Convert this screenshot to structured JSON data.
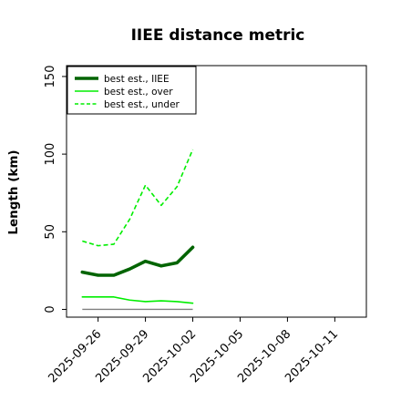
{
  "chart_data": {
    "type": "line",
    "title": "IIEE distance metric",
    "xlabel": "",
    "ylabel": "Length (km)",
    "x": [
      "2025-09-25",
      "2025-09-26",
      "2025-09-27",
      "2025-09-28",
      "2025-09-29",
      "2025-09-30",
      "2025-10-01",
      "2025-10-02"
    ],
    "xlim": [
      "2025-09-24",
      "2025-10-13"
    ],
    "x_ticks": [
      "2025-09-26",
      "2025-09-29",
      "2025-10-02",
      "2025-10-05",
      "2025-10-08",
      "2025-10-11"
    ],
    "ylim": [
      -5,
      157
    ],
    "y_ticks": [
      0,
      50,
      100,
      150
    ],
    "grid": false,
    "legend_position": "top-left",
    "series": [
      {
        "name": "best est., IIEE",
        "color": "#006400",
        "style": "solid-thick",
        "values": [
          24,
          22,
          22,
          26,
          31,
          28,
          30,
          40
        ]
      },
      {
        "name": "best est., over",
        "color": "#00ee00",
        "style": "solid",
        "values": [
          8,
          8,
          8,
          6,
          5,
          5.5,
          5,
          4
        ]
      },
      {
        "name": "best est., under",
        "color": "#00ee00",
        "style": "dashed",
        "values": [
          44,
          41,
          42,
          58,
          80,
          67,
          79,
          103
        ]
      }
    ],
    "zero_reference": {
      "color": "#808080",
      "from": "2025-09-25",
      "to": "2025-10-02",
      "value": 0
    }
  }
}
